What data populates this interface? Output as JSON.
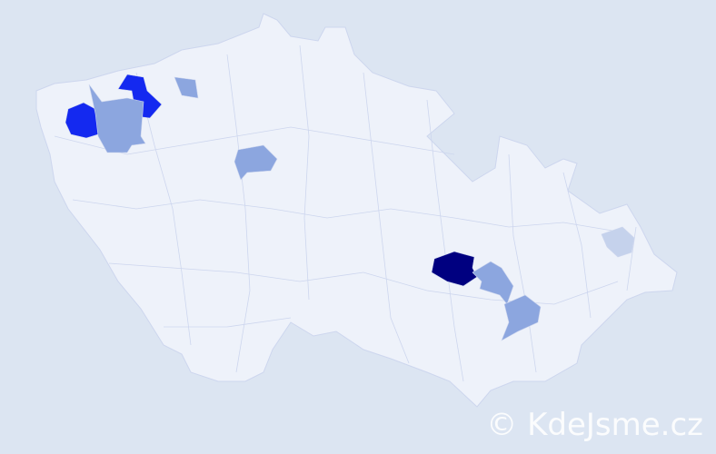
{
  "watermark": "© KdeJsme.cz",
  "colors": {
    "background": "#dce5f2",
    "base": "#eef2fa",
    "border": "#cdd6ee",
    "level_max": "#000080",
    "level_high": "#1429f0",
    "level_mid": "#8ca6df",
    "level_low": "#c5d2ec"
  },
  "highlighted_regions": [
    {
      "id": "chomutov-area",
      "level": "level_high"
    },
    {
      "id": "louny-most-area",
      "level": "level_high"
    },
    {
      "id": "litomerice-area",
      "level": "level_mid"
    },
    {
      "id": "most-louny-mid",
      "level": "level_mid"
    },
    {
      "id": "mlada-boleslav-area",
      "level": "level_mid"
    },
    {
      "id": "kladno-praha-area",
      "level": "level_mid"
    },
    {
      "id": "brno-area",
      "level": "level_max"
    },
    {
      "id": "vyskov-kromeriz-area",
      "level": "level_mid"
    },
    {
      "id": "hodonin-uherske-hradiste-area",
      "level": "level_mid"
    },
    {
      "id": "frydek-mistek-area",
      "level": "level_low"
    }
  ]
}
